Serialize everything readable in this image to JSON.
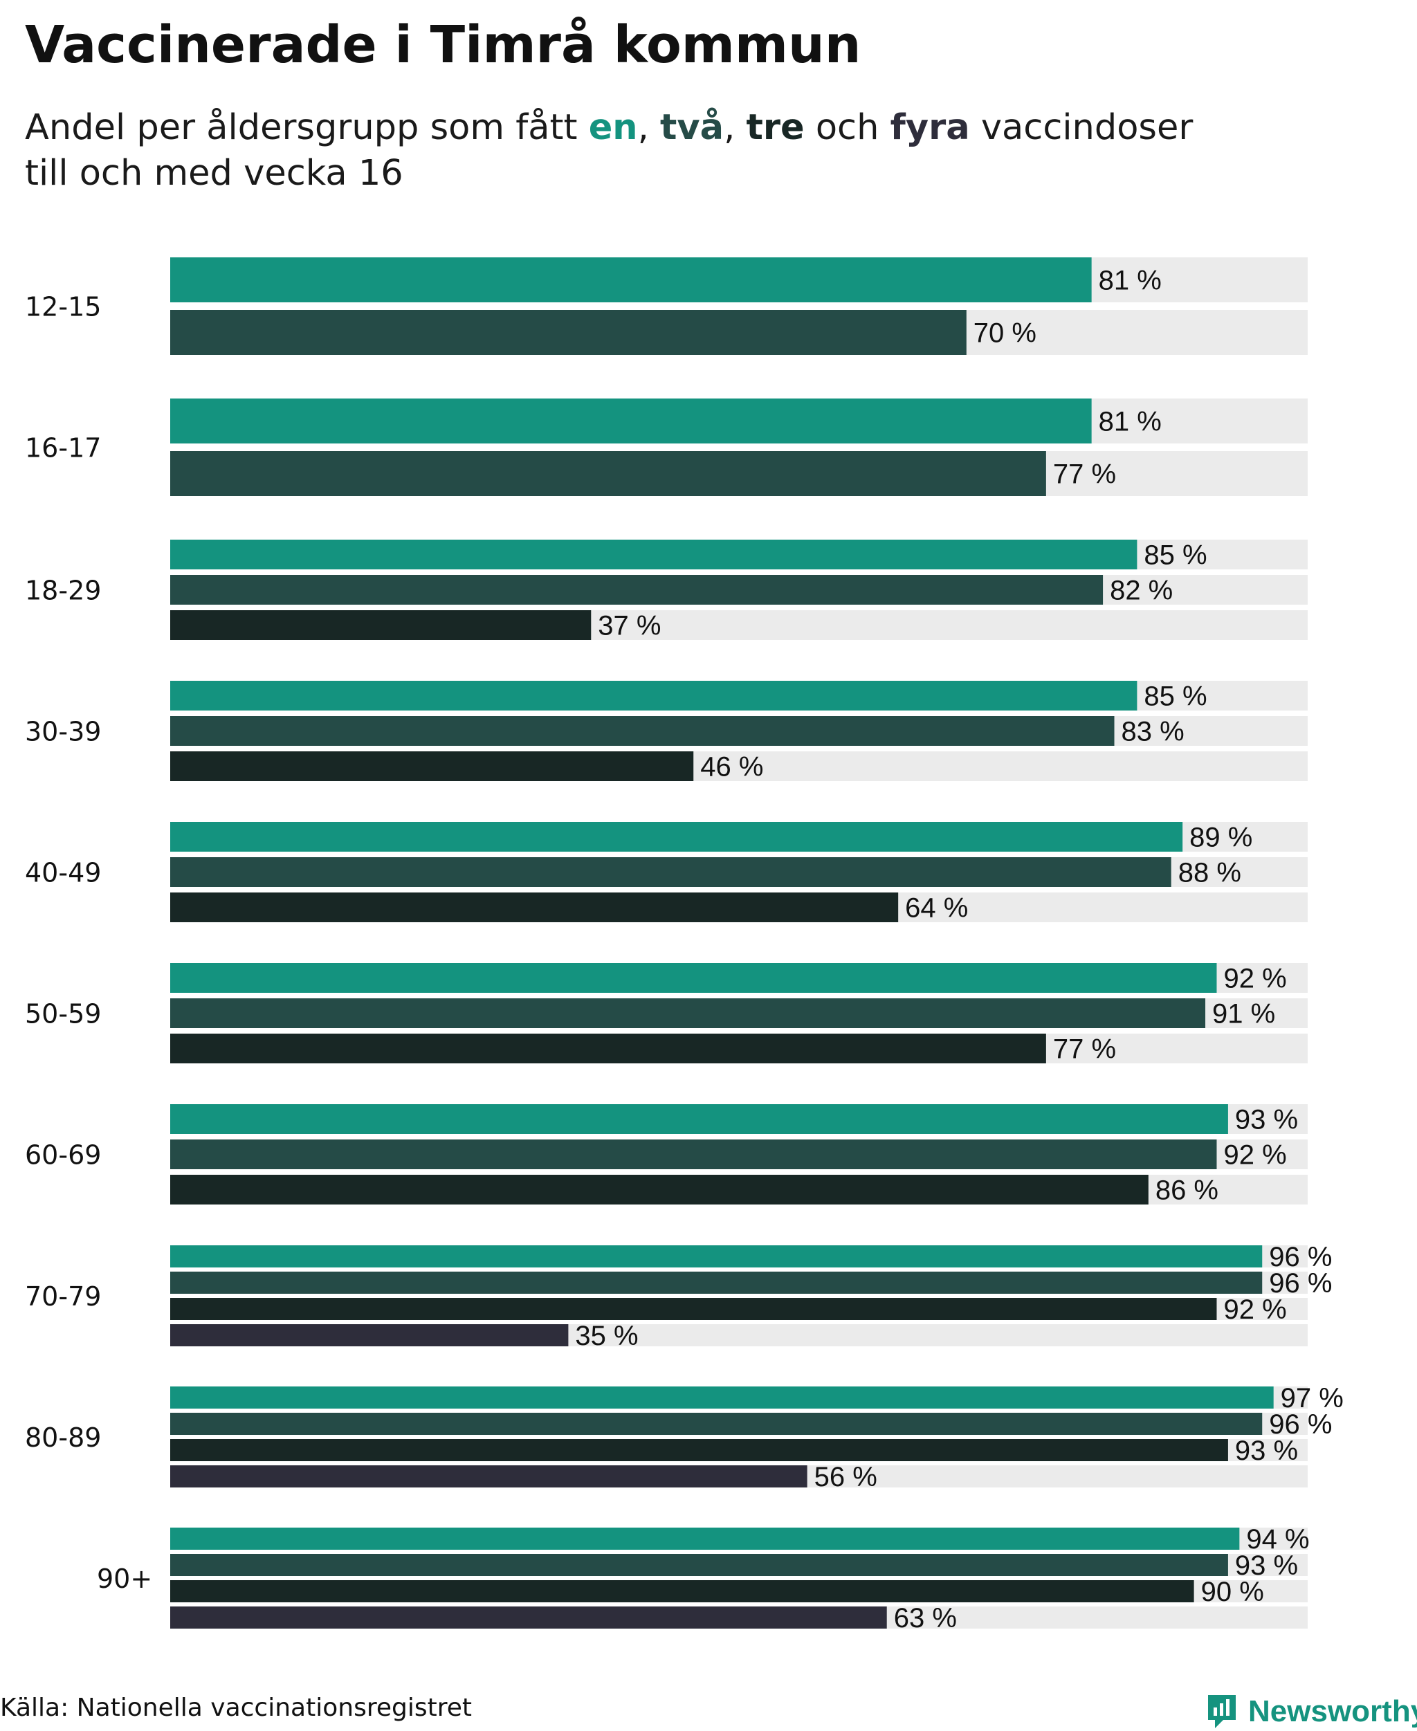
{
  "title": "Vaccinerade i Timrå kommun",
  "subtitle": {
    "prefix": "Andel per åldersgrupp som fått ",
    "dose1": "en",
    "sep1": ", ",
    "dose2": "två",
    "sep2": ", ",
    "dose3": "tre",
    "mid": " och ",
    "dose4": "fyra",
    "suffix_line1": " vaccindoser",
    "line2": "till och med vecka 16"
  },
  "colors": {
    "dose1": "#14937f",
    "dose2": "#254b47",
    "dose3": "#182725",
    "dose4": "#2e2d3b",
    "track": "#ebebeb"
  },
  "chart_data": {
    "type": "bar",
    "orientation": "horizontal",
    "title": "Vaccinerade i Timrå kommun",
    "xlim": [
      0,
      100
    ],
    "value_suffix": " %",
    "series_names": [
      "en",
      "två",
      "tre",
      "fyra"
    ],
    "groups": [
      {
        "label": "12-15",
        "values": [
          81,
          70
        ]
      },
      {
        "label": "16-17",
        "values": [
          81,
          77
        ]
      },
      {
        "label": "18-29",
        "values": [
          85,
          82,
          37
        ]
      },
      {
        "label": "30-39",
        "values": [
          85,
          83,
          46
        ]
      },
      {
        "label": "40-49",
        "values": [
          89,
          88,
          64
        ]
      },
      {
        "label": "50-59",
        "values": [
          92,
          91,
          77
        ]
      },
      {
        "label": "60-69",
        "values": [
          93,
          92,
          86
        ]
      },
      {
        "label": "70-79",
        "values": [
          96,
          96,
          92,
          35
        ]
      },
      {
        "label": "80-89",
        "values": [
          97,
          96,
          93,
          56
        ]
      },
      {
        "label": "90+",
        "values": [
          94,
          93,
          90,
          63
        ]
      }
    ]
  },
  "footer": {
    "source": "Källa: Nationella vaccinationsregistret",
    "logo_text": "Newsworthy",
    "logo_icon": "newsworthy-bar-chart-icon"
  }
}
